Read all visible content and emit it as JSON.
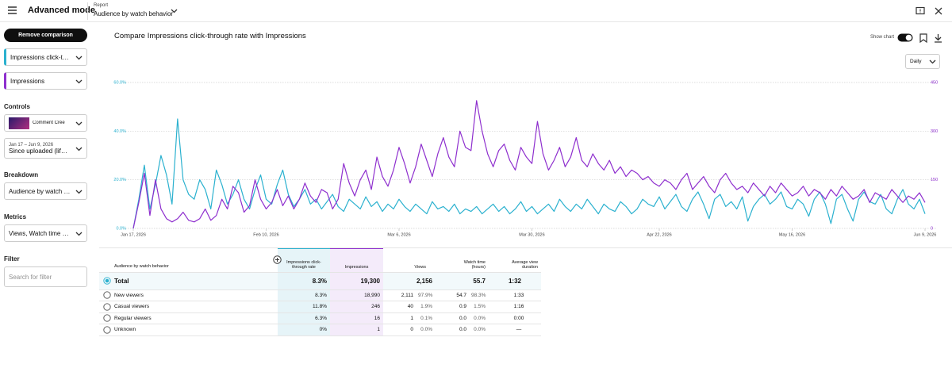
{
  "header": {
    "title": "Advanced mode",
    "report_label": "Report",
    "report_name": "Audience by watch behavior"
  },
  "sidebar": {
    "remove_comparison": "Remove comparison",
    "controls_label": "Controls",
    "video_title": "Comment Crée",
    "date_range": "Jan 17 – Jun 9, 2026",
    "date_preset": "Since uploaded (lifetime)",
    "breakdown_label": "Breakdown",
    "breakdown_value": "Audience by watch behavior",
    "metrics_label": "Metrics",
    "metrics_value": "Views, Watch time (hours)",
    "filter_label": "Filter",
    "filter_placeholder": "Search for filter"
  },
  "toolbar": {
    "show_chart": "Show chart",
    "granularity": "Daily"
  },
  "chart_data": {
    "type": "line",
    "title": "Compare Impressions click-through rate with Impressions",
    "x": [
      "Jan 17, 2026",
      "Jan 18, 2026",
      "Jan 19, 2026",
      "Jan 20, 2026",
      "Jan 21, 2026",
      "Jan 22, 2026",
      "Jan 23, 2026",
      "Jan 24, 2026",
      "Jan 25, 2026",
      "Jan 26, 2026",
      "Jan 27, 2026",
      "Jan 28, 2026",
      "Jan 29, 2026",
      "Jan 30, 2026",
      "Jan 31, 2026",
      "Feb 1, 2026",
      "Feb 2, 2026",
      "Feb 3, 2026",
      "Feb 4, 2026",
      "Feb 5, 2026",
      "Feb 6, 2026",
      "Feb 7, 2026",
      "Feb 8, 2026",
      "Feb 9, 2026",
      "Feb 10, 2026",
      "Feb 11, 2026",
      "Feb 12, 2026",
      "Feb 13, 2026",
      "Feb 14, 2026",
      "Feb 15, 2026",
      "Feb 16, 2026",
      "Feb 17, 2026",
      "Feb 18, 2026",
      "Feb 19, 2026",
      "Feb 20, 2026",
      "Feb 21, 2026",
      "Feb 22, 2026",
      "Feb 23, 2026",
      "Feb 24, 2026",
      "Feb 25, 2026",
      "Feb 26, 2026",
      "Feb 27, 2026",
      "Feb 28, 2026",
      "Mar 1, 2026",
      "Mar 2, 2026",
      "Mar 3, 2026",
      "Mar 4, 2026",
      "Mar 5, 2026",
      "Mar 6, 2026",
      "Mar 7, 2026",
      "Mar 8, 2026",
      "Mar 9, 2026",
      "Mar 10, 2026",
      "Mar 11, 2026",
      "Mar 12, 2026",
      "Mar 13, 2026",
      "Mar 14, 2026",
      "Mar 15, 2026",
      "Mar 16, 2026",
      "Mar 17, 2026",
      "Mar 18, 2026",
      "Mar 19, 2026",
      "Mar 20, 2026",
      "Mar 21, 2026",
      "Mar 22, 2026",
      "Mar 23, 2026",
      "Mar 24, 2026",
      "Mar 25, 2026",
      "Mar 26, 2026",
      "Mar 27, 2026",
      "Mar 28, 2026",
      "Mar 29, 2026",
      "Mar 30, 2026",
      "Mar 31, 2026",
      "Apr 1, 2026",
      "Apr 2, 2026",
      "Apr 3, 2026",
      "Apr 4, 2026",
      "Apr 5, 2026",
      "Apr 6, 2026",
      "Apr 7, 2026",
      "Apr 8, 2026",
      "Apr 9, 2026",
      "Apr 10, 2026",
      "Apr 11, 2026",
      "Apr 12, 2026",
      "Apr 13, 2026",
      "Apr 14, 2026",
      "Apr 15, 2026",
      "Apr 16, 2026",
      "Apr 17, 2026",
      "Apr 18, 2026",
      "Apr 19, 2026",
      "Apr 20, 2026",
      "Apr 21, 2026",
      "Apr 22, 2026",
      "Apr 23, 2026",
      "Apr 24, 2026",
      "Apr 25, 2026",
      "Apr 26, 2026",
      "Apr 27, 2026",
      "Apr 28, 2026",
      "Apr 29, 2026",
      "Apr 30, 2026",
      "May 1, 2026",
      "May 2, 2026",
      "May 3, 2026",
      "May 4, 2026",
      "May 5, 2026",
      "May 6, 2026",
      "May 7, 2026",
      "May 8, 2026",
      "May 9, 2026",
      "May 10, 2026",
      "May 11, 2026",
      "May 12, 2026",
      "May 13, 2026",
      "May 14, 2026",
      "May 15, 2026",
      "May 16, 2026",
      "May 17, 2026",
      "May 18, 2026",
      "May 19, 2026",
      "May 20, 2026",
      "May 21, 2026",
      "May 22, 2026",
      "May 23, 2026",
      "May 24, 2026",
      "May 25, 2026",
      "May 26, 2026",
      "May 27, 2026",
      "May 28, 2026",
      "May 29, 2026",
      "May 30, 2026",
      "May 31, 2026",
      "Jun 1, 2026",
      "Jun 2, 2026",
      "Jun 3, 2026",
      "Jun 4, 2026",
      "Jun 5, 2026",
      "Jun 6, 2026",
      "Jun 7, 2026",
      "Jun 8, 2026",
      "Jun 9, 2026"
    ],
    "series": [
      {
        "name": "Impressions click-through rate",
        "color": "#2bb1cf",
        "values": [
          0,
          12,
          26,
          8,
          18,
          30,
          22,
          10,
          45,
          20,
          14,
          12,
          20,
          16,
          8,
          24,
          18,
          10,
          14,
          20,
          12,
          8,
          16,
          22,
          12,
          10,
          18,
          24,
          14,
          9,
          12,
          16,
          10,
          12,
          8,
          11,
          14,
          9,
          7,
          12,
          10,
          8,
          13,
          9,
          11,
          7,
          10,
          8,
          12,
          9,
          7,
          10,
          8,
          6,
          11,
          8,
          9,
          7,
          10,
          6,
          8,
          7,
          9,
          6,
          8,
          10,
          7,
          9,
          6,
          8,
          11,
          7,
          9,
          6,
          8,
          10,
          7,
          12,
          9,
          7,
          10,
          8,
          12,
          9,
          6,
          10,
          8,
          7,
          11,
          9,
          6,
          8,
          12,
          10,
          9,
          13,
          8,
          11,
          14,
          9,
          7,
          12,
          15,
          10,
          4,
          12,
          14,
          9,
          11,
          8,
          13,
          3,
          9,
          12,
          14,
          10,
          12,
          15,
          9,
          8,
          12,
          10,
          5,
          12,
          15,
          10,
          2,
          12,
          14,
          8,
          3,
          12,
          15,
          11,
          10,
          14,
          8,
          6,
          12,
          16,
          10,
          8,
          12,
          6
        ]
      },
      {
        "name": "Impressions",
        "color": "#8e2fce",
        "axis": "y2",
        "values": [
          0,
          80,
          170,
          40,
          150,
          60,
          30,
          20,
          30,
          50,
          25,
          20,
          30,
          60,
          25,
          40,
          90,
          60,
          130,
          110,
          50,
          70,
          150,
          90,
          60,
          80,
          120,
          70,
          100,
          60,
          90,
          140,
          100,
          80,
          120,
          110,
          60,
          90,
          200,
          140,
          100,
          150,
          180,
          120,
          220,
          160,
          130,
          180,
          250,
          200,
          140,
          190,
          260,
          210,
          160,
          230,
          280,
          220,
          190,
          300,
          250,
          240,
          394,
          300,
          230,
          190,
          240,
          260,
          210,
          180,
          250,
          220,
          200,
          330,
          230,
          180,
          210,
          250,
          190,
          220,
          280,
          210,
          190,
          230,
          200,
          180,
          210,
          170,
          190,
          160,
          180,
          170,
          150,
          160,
          140,
          130,
          150,
          140,
          120,
          150,
          170,
          120,
          140,
          160,
          130,
          110,
          150,
          170,
          140,
          120,
          130,
          110,
          140,
          120,
          100,
          130,
          110,
          140,
          120,
          100,
          110,
          130,
          100,
          120,
          110,
          90,
          120,
          100,
          130,
          110,
          90,
          100,
          120,
          80,
          110,
          100,
          90,
          120,
          100,
          80,
          100,
          90,
          110,
          80
        ]
      }
    ],
    "xlim": [
      "Jan 17, 2026",
      "Jun 9, 2026"
    ],
    "xticks": [
      "Jan 17, 2026",
      "Feb 10, 2026",
      "Mar 6, 2026",
      "Mar 30, 2026",
      "Apr 22, 2026",
      "May 16, 2026",
      "Jun 9, 2026"
    ],
    "ylim": [
      0,
      60
    ],
    "yticks": [
      {
        "value": 0,
        "label": "0.0%"
      },
      {
        "value": 20,
        "label": "20.0%"
      },
      {
        "value": 40,
        "label": "40.0%"
      },
      {
        "value": 60,
        "label": "60.0%"
      }
    ],
    "y2lim": [
      0,
      450
    ],
    "y2ticks": [
      0,
      150,
      300,
      450
    ],
    "grid": true
  },
  "table": {
    "columns": [
      "Audience by watch behavior",
      "Impressions click-through rate",
      "Impressions",
      "Views",
      "Watch time (hours)",
      "Average view duration"
    ],
    "total": [
      "Total",
      "8.3%",
      "19,300",
      "2,156",
      "55.7",
      "1:32"
    ],
    "rows": [
      [
        "New viewers",
        "8.3%",
        "18,990",
        "2,111",
        "97.9%",
        "54.7",
        "98.3%",
        "1:33"
      ],
      [
        "Casual viewers",
        "11.8%",
        "246",
        "40",
        "1.9%",
        "0.9",
        "1.5%",
        "1:16"
      ],
      [
        "Regular viewers",
        "6.3%",
        "16",
        "1",
        "0.1%",
        "0.0",
        "0.0%",
        "0:00"
      ],
      [
        "Unknown",
        "0%",
        "1",
        "0",
        "0.0%",
        "0.0",
        "0.0%",
        "—"
      ]
    ]
  }
}
